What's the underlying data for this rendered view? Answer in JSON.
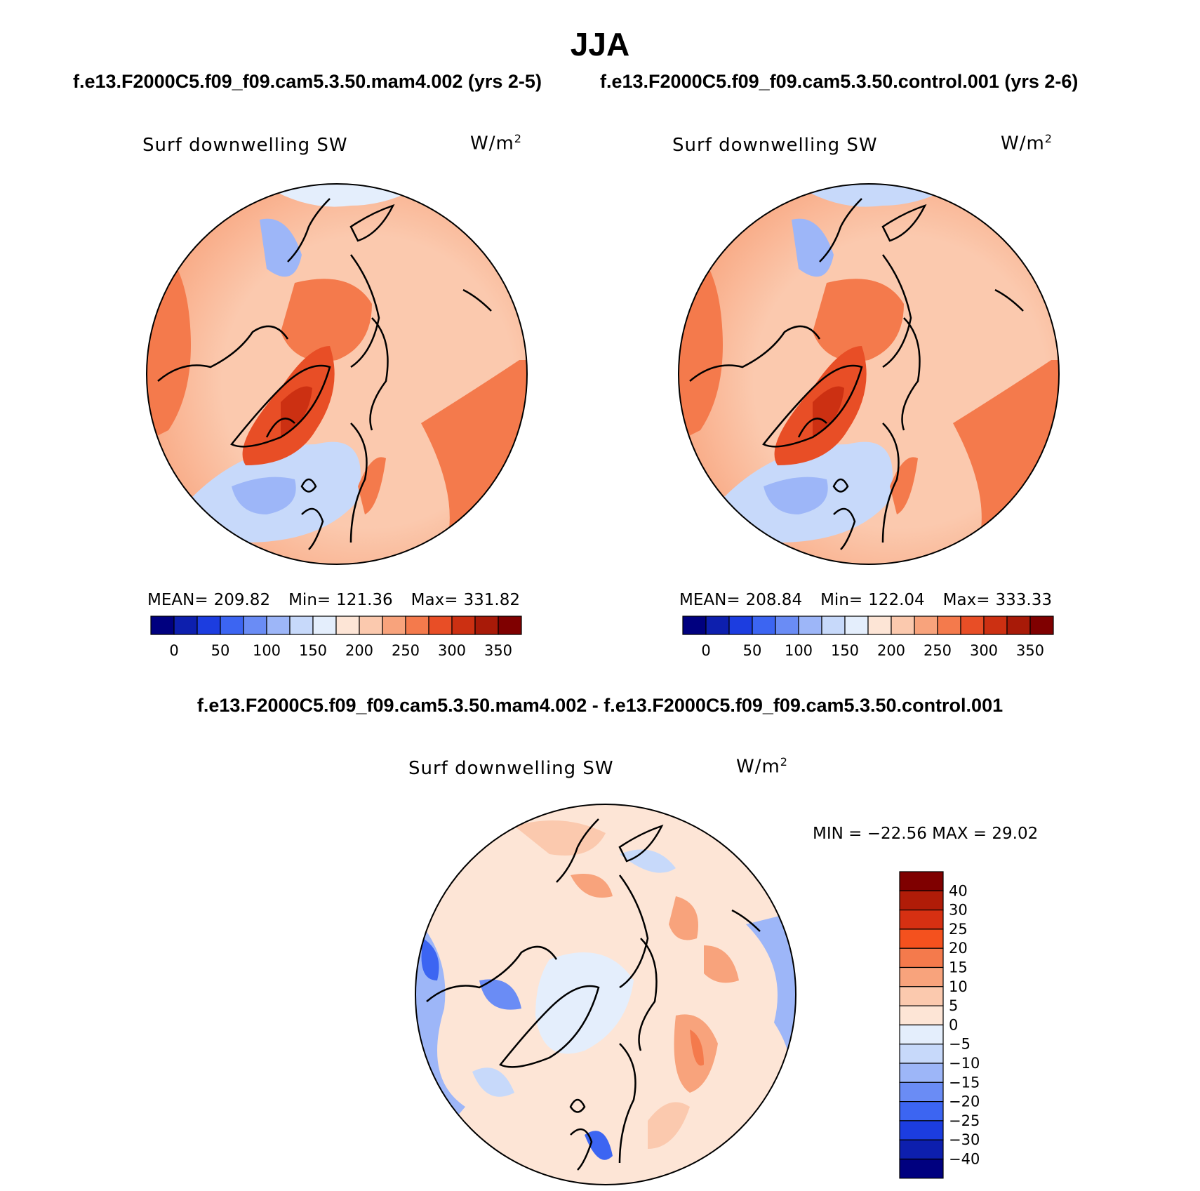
{
  "title": "JJA",
  "subtitle_left": "f.e13.F2000C5.f09_f09.cam5.3.50.mam4.002 (yrs 2-5)",
  "subtitle_right": "f.e13.F2000C5.f09_f09.cam5.3.50.control.001 (yrs 2-6)",
  "diff_title": "f.e13.F2000C5.f09_f09.cam5.3.50.mam4.002 - f.e13.F2000C5.f09_f09.cam5.3.50.control.001",
  "panels": [
    {
      "variable": "Surf downwelling SW",
      "units_base": "W/m",
      "units_exp": "2",
      "mean_label": "MEAN=",
      "mean": "209.82",
      "min_label": "Min=",
      "min": "121.36",
      "max_label": "Max=",
      "max": "331.82",
      "colorbar_ticks": [
        "0",
        "50",
        "100",
        "150",
        "200",
        "250",
        "300",
        "350"
      ]
    },
    {
      "variable": "Surf downwelling SW",
      "units_base": "W/m",
      "units_exp": "2",
      "mean_label": "MEAN=",
      "mean": "208.84",
      "min_label": "Min=",
      "min": "122.04",
      "max_label": "Max=",
      "max": "333.33",
      "colorbar_ticks": [
        "0",
        "50",
        "100",
        "150",
        "200",
        "250",
        "300",
        "350"
      ]
    }
  ],
  "diff_panel": {
    "variable": "Surf downwelling SW",
    "units_base": "W/m",
    "units_exp": "2",
    "minmax_text": "MIN = −22.56 MAX =  29.02",
    "colorbar_ticks": [
      "40",
      "30",
      "25",
      "20",
      "15",
      "10",
      "5",
      "0",
      "−5",
      "−10",
      "−15",
      "−20",
      "−25",
      "−30",
      "−40"
    ]
  },
  "colors": {
    "abs_scale": [
      "#00007f",
      "#0d1fae",
      "#1c3de0",
      "#3c65f2",
      "#6a8cf5",
      "#9db6f8",
      "#c7d9fa",
      "#e4eefc",
      "#fde5d6",
      "#fbc9ae",
      "#f8a37c",
      "#f47a4c",
      "#e84e26",
      "#cc3012",
      "#a81a08",
      "#7f0000"
    ],
    "diff_scale": [
      "#7f0000",
      "#b01c08",
      "#d63012",
      "#f4511e",
      "#f47a4c",
      "#f8a37c",
      "#fbc9ae",
      "#fde5d6",
      "#e4eefc",
      "#c7d9fa",
      "#9db6f8",
      "#6a8cf5",
      "#3c65f2",
      "#1c3de0",
      "#0d1fae",
      "#00007f"
    ]
  }
}
